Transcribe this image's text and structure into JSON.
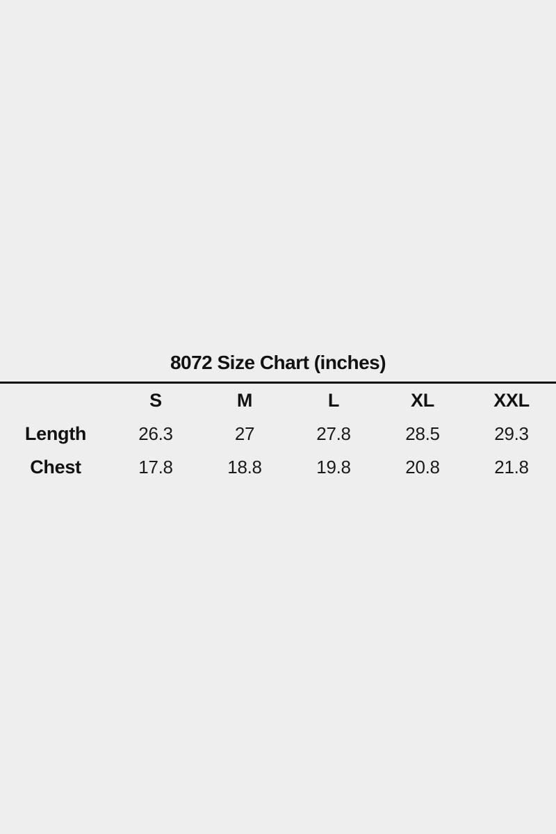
{
  "page": {
    "background_color": "#eeeeee",
    "text_color": "#121212",
    "divider_color": "#0a0a0a"
  },
  "size_chart": {
    "title": "8072 Size Chart (inches)",
    "units": "inches",
    "corner_label": "",
    "columns": [
      "S",
      "M",
      "L",
      "XL",
      "XXL"
    ],
    "rows": [
      {
        "label": "Length",
        "values": [
          "26.3",
          "27",
          "27.8",
          "28.5",
          "29.3"
        ]
      },
      {
        "label": "Chest",
        "values": [
          "17.8",
          "18.8",
          "19.8",
          "20.8",
          "21.8"
        ]
      }
    ]
  },
  "chart_data": {
    "type": "table",
    "title": "8072 Size Chart (inches)",
    "units": "inches",
    "categories": [
      "S",
      "M",
      "L",
      "XL",
      "XXL"
    ],
    "series": [
      {
        "name": "Length",
        "values": [
          26.3,
          27,
          27.8,
          28.5,
          29.3
        ]
      },
      {
        "name": "Chest",
        "values": [
          17.8,
          18.8,
          19.8,
          20.8,
          21.8
        ]
      }
    ]
  }
}
